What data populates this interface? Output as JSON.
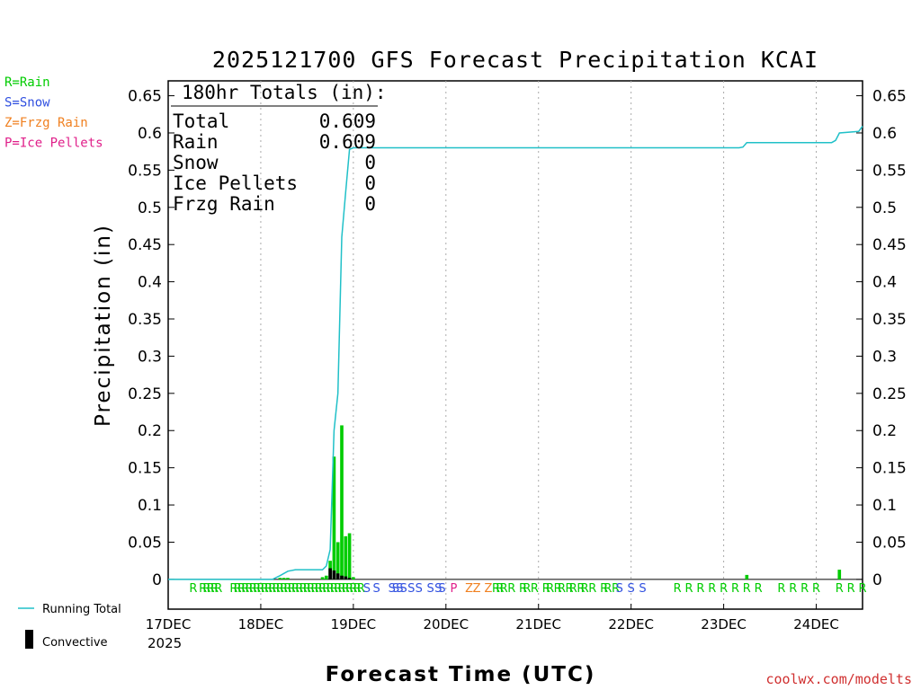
{
  "chart_data": {
    "type": "bar",
    "title": "2025121700 GFS Forecast Precipitation KCAI",
    "xlabel": "Forecast Time (UTC)",
    "ylabel": "Precipitation (in)",
    "ylim": [
      -0.04,
      0.67
    ],
    "xlim_hours": [
      0,
      180
    ],
    "y_ticks": [
      "0.65",
      "0.6",
      "0.55",
      "0.5",
      "0.45",
      "0.4",
      "0.35",
      "0.3",
      "0.25",
      "0.2",
      "0.15",
      "0.1",
      "0.05",
      "0"
    ],
    "y_tick_values": [
      0.65,
      0.6,
      0.55,
      0.5,
      0.45,
      0.4,
      0.35,
      0.3,
      0.25,
      0.2,
      0.15,
      0.1,
      0.05,
      0
    ],
    "x_ticks": [
      {
        "label": "17DEC",
        "hour": 0
      },
      {
        "label": "18DEC",
        "hour": 24
      },
      {
        "label": "19DEC",
        "hour": 48
      },
      {
        "label": "20DEC",
        "hour": 72
      },
      {
        "label": "21DEC",
        "hour": 96
      },
      {
        "label": "22DEC",
        "hour": 120
      },
      {
        "label": "23DEC",
        "hour": 144
      },
      {
        "label": "24DEC",
        "hour": 168
      }
    ],
    "year_label": "2025",
    "totals": {
      "header": "180hr Totals (in):",
      "rows": [
        {
          "label": "Total",
          "value": "0.609"
        },
        {
          "label": "Rain",
          "value": "0.609"
        },
        {
          "label": "Snow",
          "value": "0"
        },
        {
          "label": "Ice Pellets",
          "value": "0"
        },
        {
          "label": "Frzg Rain",
          "value": "0"
        }
      ]
    },
    "legend_types": [
      {
        "text": "R=Rain",
        "color": "#00cc00"
      },
      {
        "text": "S=Snow",
        "color": "#3050e0"
      },
      {
        "text": "Z=Frzg Rain",
        "color": "#f08020"
      },
      {
        "text": "P=Ice Pellets",
        "color": "#e0208a"
      }
    ],
    "legend_series": [
      {
        "name": "Running Total",
        "color": "#20c0c8"
      },
      {
        "name": "Convective",
        "color": "#000000"
      }
    ],
    "series": [
      {
        "name": "Precipitation (1hr)",
        "color": "#00cc00",
        "bars": [
          {
            "hour": 29,
            "value": 0.002
          },
          {
            "hour": 30,
            "value": 0.002
          },
          {
            "hour": 31,
            "value": 0.002
          },
          {
            "hour": 40,
            "value": 0.003
          },
          {
            "hour": 41,
            "value": 0.005
          },
          {
            "hour": 42,
            "value": 0.025
          },
          {
            "hour": 43,
            "value": 0.165
          },
          {
            "hour": 44,
            "value": 0.05
          },
          {
            "hour": 45,
            "value": 0.207
          },
          {
            "hour": 46,
            "value": 0.058
          },
          {
            "hour": 47,
            "value": 0.062
          },
          {
            "hour": 48,
            "value": 0.003
          },
          {
            "hour": 150,
            "value": 0.006
          },
          {
            "hour": 174,
            "value": 0.013
          }
        ]
      },
      {
        "name": "Convective",
        "color": "#000000",
        "bars": [
          {
            "hour": 42,
            "value": 0.015
          },
          {
            "hour": 43,
            "value": 0.012
          },
          {
            "hour": 44,
            "value": 0.008
          },
          {
            "hour": 45,
            "value": 0.005
          },
          {
            "hour": 46,
            "value": 0.004
          },
          {
            "hour": 47,
            "value": 0.002
          }
        ]
      },
      {
        "name": "Running Total",
        "color": "#20c0c8",
        "points": [
          [
            0,
            0
          ],
          [
            27,
            0
          ],
          [
            29,
            0.005
          ],
          [
            31,
            0.011
          ],
          [
            33,
            0.013
          ],
          [
            40,
            0.013
          ],
          [
            41,
            0.018
          ],
          [
            42,
            0.04
          ],
          [
            43,
            0.2
          ],
          [
            44,
            0.25
          ],
          [
            45,
            0.46
          ],
          [
            46,
            0.52
          ],
          [
            47,
            0.578
          ],
          [
            48,
            0.58
          ],
          [
            148,
            0.58
          ],
          [
            149,
            0.581
          ],
          [
            150,
            0.587
          ],
          [
            172,
            0.587
          ],
          [
            173,
            0.59
          ],
          [
            174,
            0.6
          ],
          [
            179,
            0.602
          ],
          [
            180,
            0.609
          ]
        ]
      }
    ],
    "ptype_markers": [
      {
        "t": "R",
        "hour": 6.5,
        "c": "R"
      },
      {
        "t": "R",
        "hour": 9,
        "c": "R"
      },
      {
        "t": "R",
        "hour": 10,
        "c": "R"
      },
      {
        "t": "R",
        "hour": 11,
        "c": "R"
      },
      {
        "t": "R",
        "hour": 12,
        "c": "R"
      },
      {
        "t": "R",
        "hour": 13,
        "c": "R"
      },
      {
        "t": "R",
        "hour": 17,
        "c": "R"
      },
      {
        "t": "R",
        "hour": 18,
        "c": "R"
      },
      {
        "t": "R",
        "hour": 19,
        "c": "R"
      },
      {
        "t": "R",
        "hour": 20,
        "c": "R"
      },
      {
        "t": "R",
        "hour": 21,
        "c": "R"
      },
      {
        "t": "R",
        "hour": 22,
        "c": "R"
      },
      {
        "t": "R",
        "hour": 23,
        "c": "R"
      },
      {
        "t": "R",
        "hour": 24,
        "c": "R"
      },
      {
        "t": "R",
        "hour": 25,
        "c": "R"
      },
      {
        "t": "R",
        "hour": 26,
        "c": "R"
      },
      {
        "t": "R",
        "hour": 27,
        "c": "R"
      },
      {
        "t": "R",
        "hour": 28,
        "c": "R"
      },
      {
        "t": "R",
        "hour": 29,
        "c": "R"
      },
      {
        "t": "R",
        "hour": 30,
        "c": "R"
      },
      {
        "t": "R",
        "hour": 31,
        "c": "R"
      },
      {
        "t": "R",
        "hour": 32,
        "c": "R"
      },
      {
        "t": "R",
        "hour": 33,
        "c": "R"
      },
      {
        "t": "R",
        "hour": 34,
        "c": "R"
      },
      {
        "t": "R",
        "hour": 35,
        "c": "R"
      },
      {
        "t": "R",
        "hour": 36,
        "c": "R"
      },
      {
        "t": "R",
        "hour": 37,
        "c": "R"
      },
      {
        "t": "R",
        "hour": 38,
        "c": "R"
      },
      {
        "t": "R",
        "hour": 39,
        "c": "R"
      },
      {
        "t": "R",
        "hour": 40,
        "c": "R"
      },
      {
        "t": "R",
        "hour": 41,
        "c": "R"
      },
      {
        "t": "R",
        "hour": 42,
        "c": "R"
      },
      {
        "t": "R",
        "hour": 43,
        "c": "R"
      },
      {
        "t": "R",
        "hour": 44,
        "c": "R"
      },
      {
        "t": "R",
        "hour": 45,
        "c": "R"
      },
      {
        "t": "R",
        "hour": 46,
        "c": "R"
      },
      {
        "t": "R",
        "hour": 47,
        "c": "R"
      },
      {
        "t": "R",
        "hour": 48,
        "c": "R"
      },
      {
        "t": "R",
        "hour": 49,
        "c": "R"
      },
      {
        "t": "R",
        "hour": 50,
        "c": "R"
      },
      {
        "t": "S",
        "hour": 51.5,
        "c": "S"
      },
      {
        "t": "S",
        "hour": 54,
        "c": "S"
      },
      {
        "t": "S",
        "hour": 58,
        "c": "S"
      },
      {
        "t": "S",
        "hour": 59,
        "c": "S"
      },
      {
        "t": "S",
        "hour": 60,
        "c": "S"
      },
      {
        "t": "S",
        "hour": 61,
        "c": "S"
      },
      {
        "t": "S",
        "hour": 63,
        "c": "S"
      },
      {
        "t": "S",
        "hour": 65,
        "c": "S"
      },
      {
        "t": "S",
        "hour": 68,
        "c": "S"
      },
      {
        "t": "S",
        "hour": 70,
        "c": "S"
      },
      {
        "t": "S",
        "hour": 71,
        "c": "S"
      },
      {
        "t": "P",
        "hour": 74,
        "c": "P"
      },
      {
        "t": "Z",
        "hour": 78,
        "c": "Z"
      },
      {
        "t": "Z",
        "hour": 80,
        "c": "Z"
      },
      {
        "t": "Z",
        "hour": 83,
        "c": "Z"
      },
      {
        "t": "R",
        "hour": 85,
        "c": "R"
      },
      {
        "t": "R",
        "hour": 86,
        "c": "R"
      },
      {
        "t": "R",
        "hour": 87,
        "c": "R"
      },
      {
        "t": "R",
        "hour": 89,
        "c": "R"
      },
      {
        "t": "R",
        "hour": 92,
        "c": "R"
      },
      {
        "t": "R",
        "hour": 93,
        "c": "R"
      },
      {
        "t": "R",
        "hour": 95,
        "c": "R"
      },
      {
        "t": "R",
        "hour": 98,
        "c": "R"
      },
      {
        "t": "R",
        "hour": 99,
        "c": "R"
      },
      {
        "t": "R",
        "hour": 101,
        "c": "R"
      },
      {
        "t": "R",
        "hour": 102,
        "c": "R"
      },
      {
        "t": "R",
        "hour": 104,
        "c": "R"
      },
      {
        "t": "R",
        "hour": 105,
        "c": "R"
      },
      {
        "t": "R",
        "hour": 107,
        "c": "R"
      },
      {
        "t": "R",
        "hour": 108,
        "c": "R"
      },
      {
        "t": "R",
        "hour": 110,
        "c": "R"
      },
      {
        "t": "R",
        "hour": 113,
        "c": "R"
      },
      {
        "t": "R",
        "hour": 114,
        "c": "R"
      },
      {
        "t": "R",
        "hour": 116,
        "c": "R"
      },
      {
        "t": "S",
        "hour": 117,
        "c": "S"
      },
      {
        "t": "S",
        "hour": 120,
        "c": "S"
      },
      {
        "t": "S",
        "hour": 123,
        "c": "S"
      },
      {
        "t": "R",
        "hour": 132,
        "c": "R"
      },
      {
        "t": "R",
        "hour": 135,
        "c": "R"
      },
      {
        "t": "R",
        "hour": 138,
        "c": "R"
      },
      {
        "t": "R",
        "hour": 141,
        "c": "R"
      },
      {
        "t": "R",
        "hour": 144,
        "c": "R"
      },
      {
        "t": "R",
        "hour": 147,
        "c": "R"
      },
      {
        "t": "R",
        "hour": 150,
        "c": "R"
      },
      {
        "t": "R",
        "hour": 153,
        "c": "R"
      },
      {
        "t": "R",
        "hour": 159,
        "c": "R"
      },
      {
        "t": "R",
        "hour": 162,
        "c": "R"
      },
      {
        "t": "R",
        "hour": 165,
        "c": "R"
      },
      {
        "t": "R",
        "hour": 168,
        "c": "R"
      },
      {
        "t": "R",
        "hour": 174,
        "c": "R"
      },
      {
        "t": "R",
        "hour": 177,
        "c": "R"
      },
      {
        "t": "R",
        "hour": 180,
        "c": "R"
      }
    ],
    "credit": "coolwx.com/modelts"
  },
  "colors": {
    "rain": "#00cc00",
    "snow": "#3050e0",
    "frzg": "#f08020",
    "pellets": "#e0208a",
    "running_total": "#20c0c8",
    "convective": "#000000",
    "credit": "#d03030"
  }
}
